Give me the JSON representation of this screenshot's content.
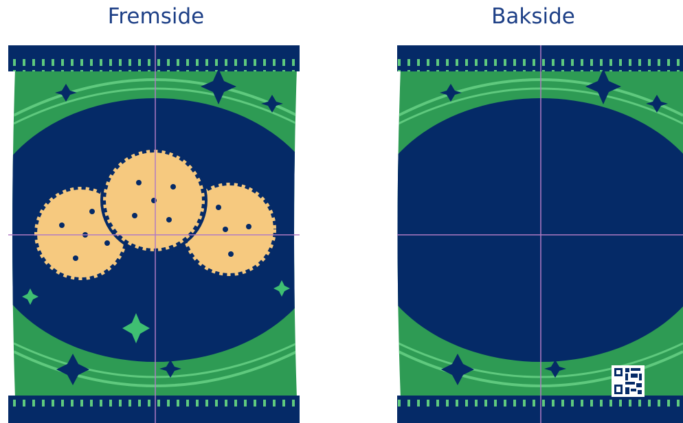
{
  "front": {
    "title": "Fremside"
  },
  "back": {
    "title": "Bakside"
  },
  "colors": {
    "navy": "#052a67",
    "green": "#2e9b54",
    "light_green": "#5fc97e",
    "cookie": "#f6c97f",
    "guide_line": "#b07ac4",
    "white": "#ffffff"
  },
  "icons": [
    "star-icon",
    "cookie-icon",
    "qr-code-icon"
  ]
}
